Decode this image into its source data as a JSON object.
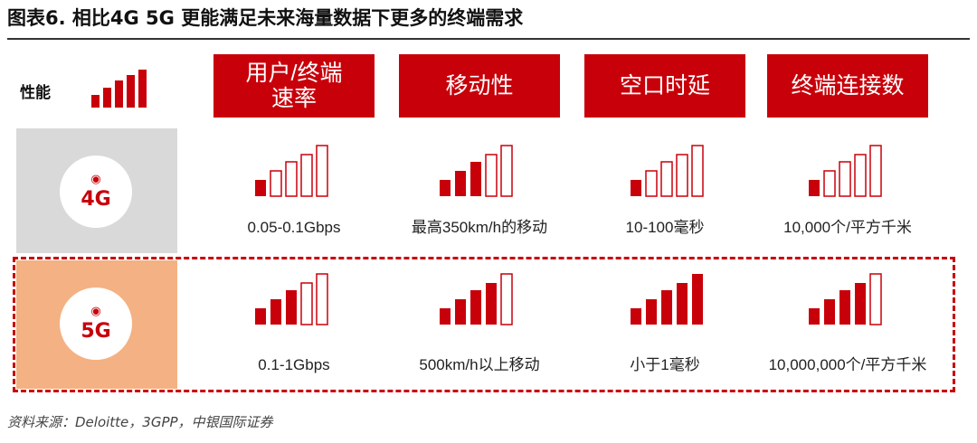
{
  "title": "图表6. 相比4G 5G 更能满足未来海量数据下更多的终端需求",
  "performance_label": "性能",
  "performance_icon": {
    "name": "signal-strength-icon",
    "level": 5
  },
  "colors": {
    "accent": "#c8000a",
    "row_4g": "#d9d9d9",
    "row_5g": "#f4b183"
  },
  "headers": [
    "用户/终端速率",
    "移动性",
    "空口时延",
    "终端连接数"
  ],
  "rows": [
    {
      "id": "4g",
      "label": "4G",
      "icon": "wifi-signal-icon",
      "levels": [
        1,
        3,
        1,
        1
      ],
      "values": [
        "0.05-0.1Gbps",
        "最高350km/h的移动",
        "10-100毫秒",
        "10,000个/平方千米"
      ]
    },
    {
      "id": "5g",
      "label": "5G",
      "icon": "wifi-signal-icon",
      "levels": [
        3,
        4,
        5,
        4
      ],
      "values": [
        "0.1-1Gbps",
        "500km/h以上移动",
        "小于1毫秒",
        "10,000,000个/平方千米"
      ]
    }
  ],
  "source": "资料来源：Deloitte，3GPP，中银国际证券"
}
